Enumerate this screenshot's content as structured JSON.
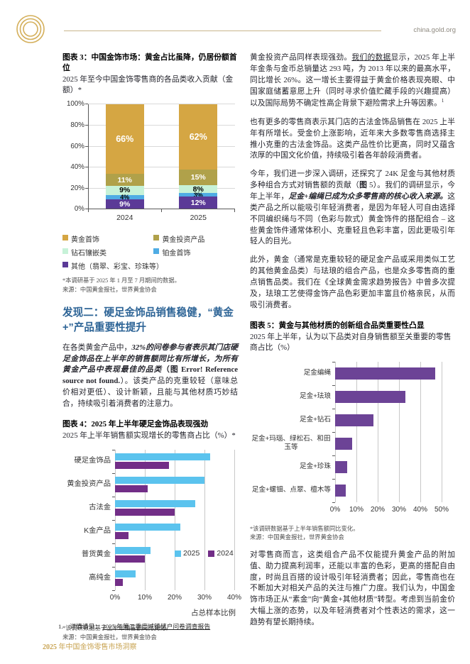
{
  "header": {
    "site": "china.gold.org"
  },
  "colors": {
    "brand_gold": "#c9a453",
    "heading_blue": "#2d6496",
    "fig3_gold": "#d5a643",
    "fig3_olive": "#b0a14a",
    "fig3_mint": "#c7f2d8",
    "fig3_blue": "#4face4",
    "fig3_purple": "#5b3a97",
    "fig4_blue": "#5bc3ee",
    "fig4_purple": "#722e87",
    "fig5_purple": "#6c4396"
  },
  "left": {
    "fig3_title": "图表 3：中国金饰市场：黄金占比虽降，仍居份额首位",
    "fig3_subtitle": "2025 年至今中国金饰零售商的各品类收入贡献（金额）*",
    "fig3_note1": "*本调研基于 2025 年 1 月至 7 月期间的数据。",
    "fig3_note2": "来源：中国黄金报社，世界黄金协会",
    "section_heading": "发现二：硬足金饰品销售稳健，“黄金+”产品重要性提升",
    "para1": {
      "s1": "在各类黄金产品中，",
      "s2": "32%的问卷参与者表示其门店硬足金饰品在上半年的销售额同比有所增长，为所有黄金产品中表现最佳的品类",
      "s3": "（图 ",
      "s4": "Error! Reference source not found.",
      "s5": "）。该类产品的克重较轻（意味总价相对更低）、设计新颖，且能与其他材质巧妙结合，持续吸引着消费者的注意力。"
    },
    "fig4_title": "图表 4：2025 年上半年硬足金饰品表现强劲",
    "fig4_subtitle": "2025 年上半年销售额实现增长的零售商占比（%）*",
    "fig4_note1": "*该调研数据基于上半年销售额同比变化。",
    "fig4_note2": "来源：中国黄金报社，世界黄金协会"
  },
  "right": {
    "para1": {
      "s1": "黄金投资产品同样表现强劲。",
      "s2": "我们的数据",
      "s3": "显示，2025 年上半年金条与金币总销量达 293 吨，为 2013 年以来的最高水平，同比增长 26%。这一增长主要得益于黄金价格表现亮眼、中国家庭储蓄意愿上升（同时寻求价值贮藏手段的兴趣提高）以及国际局势不确定性高企背景下避险需求上升等因素。",
      "sup": "1"
    },
    "para2": "也有更多的零售商表示其门店的古法金饰品销售在 2025 上半年有所增长。受金价上涨影响，近年来大多数零售商选择主推小克重的古法金饰品。这类产品性价比更高，同时又蕴含浓厚的中国文化价值，持续吸引着各年龄段消费者。",
    "para3": {
      "s1": "今年，我们进一步深入调研，还探究了 24K 足金与其他材质多种组合方式对销售额的贡献（",
      "s2": "图",
      "s3": " 5）。我们的调研显示，今年上半年，",
      "s4": "足金+编绳已成为众多零售商的核心收入来源。",
      "s5": "这类产品之所以能吸引年轻消费者，是因为年轻人可自由选择不同编织绳与不同（色彩与款式）黄金饰件的搭配组合 – 这些黄金饰件通常体积小、克重轻且色彩丰富，因此更吸引年轻人的目光。"
    },
    "para4": "此外，黄金（通常是克重较轻的硬足金产品或采用类似工艺的其他黄金品类）与珐琅的组合产品，也是众多零售商的重点销售品类。我们在《全球黄金需求趋势报告》中曾多次提及，珐琅工艺使得金饰产品色彩更加丰富且价格亲民，从而吸引消费者。",
    "fig5_title": "图表 5：黄金与其他材质的创新组合品类重要性凸显",
    "fig5_subtitle": "2025 年上半年，认为以下品类对自身销售额至关重要的零售商占比（%）",
    "fig5_note1": "*该调研数据基于上半年销售额同比变化。",
    "fig5_note2": "来源：中国黄金报社，世界黄金协会",
    "para5": "对零售商而言，这类组合产品不仅能提升黄金产品的附加值、助力提高利润率，还能以丰富的色彩，更高的搭配自由度，时尚且百搭的设计吸引年轻消费者；因此，零售商也在不断加大对相关产品的关注与推广力度。我们认为，中国金饰市场正从“素金”向“黄金+其他材质”转型。考虑到当前金价大幅上涨的态势，以及年轻消费者对个性表达的需求，这一趋势有望长期持续。"
  },
  "footer": {
    "note_number": "1.",
    "note_prefix": "详情请见：",
    "note_link": "2025 年第二季度城镇储户问卷调查报告",
    "page_year": "2025",
    "page_rest": " 年中国金饰零售市场洞察"
  },
  "chart_data": [
    {
      "id": "fig3",
      "type": "bar",
      "stacked": true,
      "orientation": "vertical",
      "title": "图表 3：中国金饰市场：黄金占比虽降，仍居份额首位",
      "categories": [
        "2024",
        "2025"
      ],
      "series": [
        {
          "name": "其他（翡翠、彩宝、珍珠等）",
          "color": "#5b3a97",
          "label_color": "#ffffff",
          "values": [
            9,
            12
          ]
        },
        {
          "name": "铂金首饰",
          "color": "#4face4",
          "label_color": "#000000",
          "values": [
            4,
            3
          ]
        },
        {
          "name": "钻石镶嵌类",
          "color": "#c7f2d8",
          "label_color": "#000000",
          "values": [
            9,
            8
          ]
        },
        {
          "name": "黄金投资产品",
          "color": "#b0a14a",
          "label_color": "#ffffff",
          "values": [
            11,
            15
          ]
        },
        {
          "name": "黄金首饰",
          "color": "#d5a643",
          "label_color": "#ffffff",
          "values": [
            66,
            62
          ]
        }
      ],
      "labels_pct": true,
      "ylim": [
        0,
        100
      ],
      "yticks": [
        "0%",
        "20%",
        "40%",
        "60%",
        "80%",
        "100%"
      ],
      "grid": true,
      "legend_position": "bottom",
      "legend": [
        {
          "label": "黄金首饰",
          "color": "#d5a643"
        },
        {
          "label": "黄金投资产品",
          "color": "#b0a14a"
        },
        {
          "label": "钻石镶嵌类",
          "color": "#c7f2d8"
        },
        {
          "label": "铂金首饰",
          "color": "#4face4"
        },
        {
          "label": "其他（翡翠、彩宝、珍珠等）",
          "color": "#5b3a97"
        }
      ]
    },
    {
      "id": "fig4",
      "type": "bar",
      "grouped": true,
      "orientation": "horizontal",
      "title": "图表 4：2025 年上半年硬足金饰品表现强劲",
      "categories": [
        "硬足金饰品",
        "黄金投资产品",
        "古法金",
        "K金产品",
        "普货黄金",
        "高纯金"
      ],
      "series": [
        {
          "name": "2025",
          "color": "#5bc3ee",
          "values": [
            32,
            30,
            27,
            22,
            12,
            7
          ]
        },
        {
          "name": "2024",
          "color": "#722e87",
          "values": [
            18,
            11,
            20,
            4.5,
            10,
            2.5
          ]
        }
      ],
      "xlim": [
        0,
        40
      ],
      "xticks": [
        "0%",
        "10%",
        "20%",
        "30%",
        "40%"
      ],
      "xlabel": "占总样本比例",
      "grid": true,
      "legend_position": "inside-right"
    },
    {
      "id": "fig5",
      "type": "bar",
      "orientation": "horizontal",
      "title": "图表 5：黄金与其他材质的创新组合品类重要性凸显",
      "categories": [
        "足金编绳",
        "足金+珐琅",
        "足金+钻石",
        "足金+玛瑙、绿松石、和田玉等",
        "足金+珍珠",
        "足金+螺钿、点翠、檀木等"
      ],
      "values": [
        47,
        33,
        18,
        8,
        5.5,
        5
      ],
      "color": "#6c4396",
      "xlim": [
        0,
        50
      ],
      "xticks": [
        "0%",
        "10%",
        "20%",
        "30%",
        "40%",
        "50%"
      ],
      "xlabel": "",
      "grid": true,
      "legend_position": "none"
    }
  ]
}
